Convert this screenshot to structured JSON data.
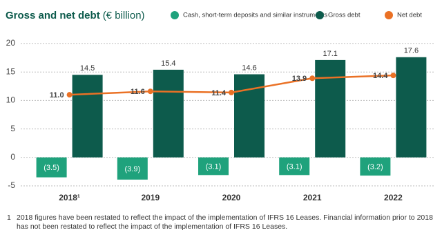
{
  "chart_data": {
    "type": "bar-line",
    "title": "Gross and net debt",
    "subtitle": "(€ billion)",
    "categories": [
      "2018¹",
      "2019",
      "2020",
      "2021",
      "2022"
    ],
    "series": [
      {
        "name": "Cash, short-term deposits and similar instruments",
        "color": "#1fa27c",
        "kind": "bar",
        "values": [
          -3.5,
          -3.9,
          -3.1,
          -3.1,
          -3.2
        ],
        "value_labels": [
          "(3.5)",
          "(3.9)",
          "(3.1)",
          "(3.1)",
          "(3.2)"
        ]
      },
      {
        "name": "Gross debt",
        "color": "#0d5b4c",
        "kind": "bar",
        "values": [
          14.5,
          15.4,
          14.6,
          17.1,
          17.6
        ],
        "value_labels": [
          "14.5",
          "15.4",
          "14.6",
          "17.1",
          "17.6"
        ]
      },
      {
        "name": "Net debt",
        "color": "#ea7125",
        "kind": "line",
        "values": [
          11.0,
          11.6,
          11.4,
          13.9,
          14.4
        ],
        "value_labels": [
          "11.0",
          "11.6",
          "11.4",
          "13.9",
          "14.4"
        ]
      }
    ],
    "ylim": [
      -5,
      20
    ],
    "yticks": [
      -5,
      0,
      5,
      10,
      15,
      20
    ],
    "grid": true,
    "footnote": {
      "marker": "1",
      "text": "2018 figures have been restated to reflect the impact of the implementation of IFRS 16 Leases. Financial information prior to 2018 has not been restated to reflect the impact of the implementation of IFRS 16 Leases."
    }
  }
}
